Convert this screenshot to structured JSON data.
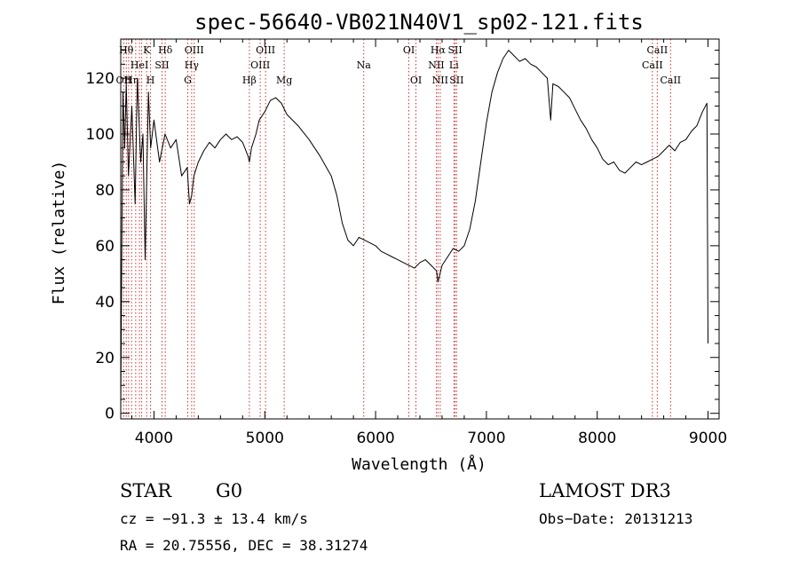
{
  "chart_data": {
    "type": "line",
    "title": "spec-56640-VB021N40V1_sp02-121.fits",
    "xlabel": "Wavelength (Å)",
    "ylabel": "Flux (relative)",
    "xlim": [
      3700,
      9100
    ],
    "ylim": [
      -2,
      134
    ],
    "x_ticks": [
      4000,
      5000,
      6000,
      7000,
      8000,
      9000
    ],
    "y_ticks": [
      0,
      20,
      40,
      60,
      80,
      100,
      120
    ],
    "grid": false,
    "line_color": "#000000",
    "marker_line_color": "#d03030",
    "series": [
      {
        "x": [
          3700,
          3710,
          3720,
          3735,
          3750,
          3770,
          3800,
          3830,
          3850,
          3880,
          3900,
          3920,
          3950,
          3970,
          4000,
          4050,
          4100,
          4150,
          4200,
          4250,
          4300,
          4320,
          4340,
          4360,
          4400,
          4450,
          4500,
          4550,
          4600,
          4650,
          4700,
          4750,
          4800,
          4850,
          4861,
          4880,
          4920,
          4950,
          5000,
          5050,
          5100,
          5150,
          5200,
          5300,
          5400,
          5450,
          5500,
          5600,
          5650,
          5700,
          5750,
          5800,
          5850,
          5900,
          5950,
          6000,
          6050,
          6100,
          6150,
          6200,
          6250,
          6300,
          6350,
          6400,
          6450,
          6500,
          6550,
          6563,
          6600,
          6650,
          6700,
          6750,
          6800,
          6850,
          6900,
          6950,
          7000,
          7050,
          7100,
          7150,
          7200,
          7250,
          7300,
          7350,
          7400,
          7450,
          7500,
          7550,
          7580,
          7600,
          7650,
          7700,
          7750,
          7800,
          7850,
          7900,
          7950,
          8000,
          8050,
          8100,
          8150,
          8200,
          8250,
          8300,
          8350,
          8400,
          8450,
          8500,
          8550,
          8600,
          8650,
          8700,
          8750,
          8800,
          8850,
          8900,
          8950,
          8990,
          9000
        ],
        "y": [
          0,
          60,
          115,
          95,
          118,
          85,
          110,
          75,
          120,
          90,
          100,
          55,
          115,
          95,
          105,
          90,
          100,
          95,
          98,
          85,
          88,
          75,
          78,
          85,
          90,
          94,
          97,
          95,
          98,
          100,
          98,
          99,
          97,
          92,
          90,
          95,
          100,
          105,
          108,
          112,
          113,
          111,
          107,
          103,
          98,
          95,
          92,
          85,
          78,
          68,
          62,
          60,
          63,
          62,
          61,
          60,
          58,
          57,
          56,
          55,
          54,
          53,
          52,
          54,
          55,
          53,
          51,
          47,
          53,
          56,
          59,
          58,
          60,
          66,
          76,
          90,
          104,
          115,
          122,
          127,
          130,
          128,
          126,
          127,
          125,
          124,
          122,
          120,
          105,
          118,
          117,
          115,
          113,
          109,
          105,
          102,
          98,
          95,
          91,
          89,
          90,
          87,
          86,
          88,
          90,
          89,
          90,
          91,
          92,
          94,
          96,
          94,
          97,
          98,
          101,
          103,
          108,
          111,
          25
        ]
      }
    ],
    "line_markers": [
      {
        "x": 3727,
        "label": "OII",
        "row": 3
      },
      {
        "x": 3750,
        "label": "Hθ",
        "row": 1
      },
      {
        "x": 3771,
        "label": "",
        "row": 0
      },
      {
        "x": 3798,
        "label": "Hη",
        "row": 3
      },
      {
        "x": 3835,
        "label": "",
        "row": 0
      },
      {
        "x": 3869,
        "label": "HeI",
        "row": 2
      },
      {
        "x": 3889,
        "label": "",
        "row": 0
      },
      {
        "x": 3934,
        "label": "K",
        "row": 1
      },
      {
        "x": 3969,
        "label": "H",
        "row": 3
      },
      {
        "x": 4072,
        "label": "SII",
        "row": 2
      },
      {
        "x": 4102,
        "label": "Hδ",
        "row": 1
      },
      {
        "x": 4305,
        "label": "G",
        "row": 3
      },
      {
        "x": 4340,
        "label": "Hγ",
        "row": 2
      },
      {
        "x": 4363,
        "label": "OIII",
        "row": 1
      },
      {
        "x": 4861,
        "label": "Hβ",
        "row": 3
      },
      {
        "x": 4959,
        "label": "OIII",
        "row": 2
      },
      {
        "x": 5007,
        "label": "OIII",
        "row": 1
      },
      {
        "x": 5175,
        "label": "Mg",
        "row": 3
      },
      {
        "x": 5893,
        "label": "Na",
        "row": 2
      },
      {
        "x": 6300,
        "label": "OI",
        "row": 1
      },
      {
        "x": 6364,
        "label": "OI",
        "row": 3
      },
      {
        "x": 6548,
        "label": "NII",
        "row": 2
      },
      {
        "x": 6563,
        "label": "Hα",
        "row": 1
      },
      {
        "x": 6583,
        "label": "NII",
        "row": 3
      },
      {
        "x": 6707,
        "label": "Li",
        "row": 2
      },
      {
        "x": 6717,
        "label": "SII",
        "row": 1
      },
      {
        "x": 6731,
        "label": "SII",
        "row": 3
      },
      {
        "x": 8498,
        "label": "CaII",
        "row": 2
      },
      {
        "x": 8542,
        "label": "CaII",
        "row": 1
      },
      {
        "x": 8662,
        "label": "CaII",
        "row": 3
      }
    ]
  },
  "info": {
    "object_class": "STAR",
    "subclass": "G0",
    "survey": "LAMOST DR3",
    "redshift_line": "cz = −91.3 ± 13.4 km/s",
    "obs_date_line": "Obs−Date: 20131213",
    "coords_line": "RA =  20.75556, DEC =  38.31274"
  }
}
